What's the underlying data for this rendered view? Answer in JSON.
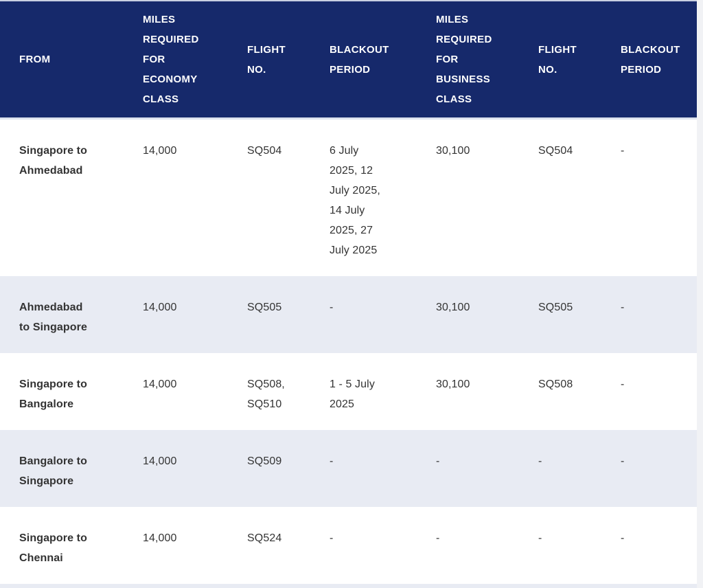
{
  "table": {
    "header": {
      "columns": [
        "FROM",
        "MILES REQUIRED FOR ECONOMY CLASS",
        "FLIGHT NO.",
        "BLACKOUT PERIOD",
        "MILES REQUIRED FOR BUSINESS CLASS",
        "FLIGHT NO.",
        "BLACKOUT PERIOD"
      ]
    },
    "rows": [
      {
        "from": "Singapore to Ahmedabad",
        "miles_economy": "14,000",
        "flight_no_economy": "SQ504",
        "blackout_economy": "6 July 2025, 12 July 2025, 14 July 2025, 27 July 2025",
        "miles_business": "30,100",
        "flight_no_business": "SQ504",
        "blackout_business": "-"
      },
      {
        "from": "Ahmedabad to Singapore",
        "miles_economy": "14,000",
        "flight_no_economy": "SQ505",
        "blackout_economy": "-",
        "miles_business": "30,100",
        "flight_no_business": "SQ505",
        "blackout_business": "-"
      },
      {
        "from": "Singapore to Bangalore",
        "miles_economy": "14,000",
        "flight_no_economy": "SQ508, SQ510",
        "blackout_economy": "1 - 5 July 2025",
        "miles_business": "30,100",
        "flight_no_business": "SQ508",
        "blackout_business": "-"
      },
      {
        "from": "Bangalore to Singapore",
        "miles_economy": "14,000",
        "flight_no_economy": "SQ509",
        "blackout_economy": "-",
        "miles_business": "-",
        "flight_no_business": "-",
        "blackout_business": "-"
      },
      {
        "from": "Singapore to Chennai",
        "miles_economy": "14,000",
        "flight_no_economy": "SQ524",
        "blackout_economy": "-",
        "miles_business": "-",
        "flight_no_business": "-",
        "blackout_business": "-"
      }
    ],
    "colors": {
      "header_bg": "#16296B",
      "header_text": "#FFFFFF",
      "row_bg": "#FFFFFF",
      "row_alt_bg": "#E8EBF3",
      "body_text": "#333333",
      "page_bg": "#F1F2F5",
      "divider": "#DDE2EE",
      "top_border": "#C9D0E2"
    }
  }
}
